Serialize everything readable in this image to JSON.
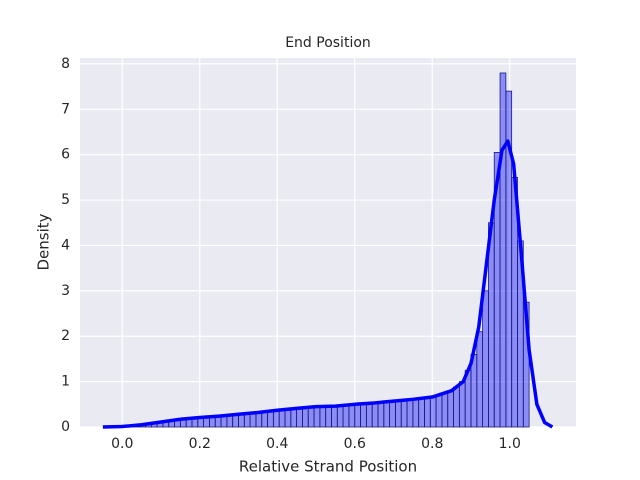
{
  "chart_data": {
    "type": "histogram",
    "title": "End Position",
    "xlabel": "Relative Strand Position",
    "ylabel": "Density",
    "bins": [
      0,
      0.015,
      0.03,
      0.045,
      0.06,
      0.075,
      0.09,
      0.105,
      0.12,
      0.135,
      0.15,
      0.165,
      0.18,
      0.195,
      0.21,
      0.225,
      0.24,
      0.255,
      0.27,
      0.285,
      0.3,
      0.315,
      0.33,
      0.345,
      0.36,
      0.375,
      0.39,
      0.405,
      0.42,
      0.435,
      0.45,
      0.465,
      0.48,
      0.495,
      0.51,
      0.525,
      0.54,
      0.555,
      0.57,
      0.585,
      0.6,
      0.615,
      0.63,
      0.645,
      0.66,
      0.675,
      0.69,
      0.705,
      0.72,
      0.735,
      0.75,
      0.765,
      0.78,
      0.795,
      0.81,
      0.825,
      0.84,
      0.855,
      0.87,
      0.885,
      0.9,
      0.915,
      0.93,
      0.945,
      0.96,
      0.975,
      0.99,
      1.005,
      1.02,
      1.035,
      1.05
    ],
    "counts": [
      0.02,
      0.03,
      0.04,
      0.05,
      0.07,
      0.09,
      0.11,
      0.13,
      0.15,
      0.16,
      0.18,
      0.19,
      0.2,
      0.21,
      0.22,
      0.23,
      0.25,
      0.26,
      0.28,
      0.29,
      0.3,
      0.31,
      0.32,
      0.33,
      0.35,
      0.37,
      0.38,
      0.38,
      0.39,
      0.4,
      0.42,
      0.44,
      0.45,
      0.45,
      0.46,
      0.46,
      0.47,
      0.48,
      0.5,
      0.51,
      0.52,
      0.53,
      0.54,
      0.55,
      0.56,
      0.57,
      0.58,
      0.59,
      0.6,
      0.61,
      0.62,
      0.64,
      0.66,
      0.68,
      0.71,
      0.75,
      0.8,
      0.88,
      1.0,
      1.25,
      1.6,
      2.1,
      3.0,
      4.5,
      6.05,
      7.8,
      7.4,
      5.5,
      4.1,
      2.75
    ],
    "color": "#0000ff",
    "edgecolor": "#1a1a80",
    "line": {
      "x": [
        -0.05,
        0,
        0.05,
        0.1,
        0.15,
        0.2,
        0.25,
        0.3,
        0.35,
        0.4,
        0.45,
        0.5,
        0.55,
        0.6,
        0.65,
        0.7,
        0.75,
        0.8,
        0.85,
        0.88,
        0.9,
        0.92,
        0.94,
        0.96,
        0.98,
        0.995,
        1.01,
        1.03,
        1.05,
        1.07,
        1.09,
        1.11
      ],
      "values": [
        0,
        0.01,
        0.05,
        0.11,
        0.17,
        0.21,
        0.24,
        0.28,
        0.32,
        0.37,
        0.41,
        0.45,
        0.46,
        0.5,
        0.53,
        0.57,
        0.61,
        0.66,
        0.8,
        1.0,
        1.4,
        2.2,
        3.6,
        5.0,
        6.1,
        6.3,
        5.8,
        3.8,
        1.7,
        0.5,
        0.1,
        0
      ],
      "color": "#0000ff"
    },
    "xlim": [
      -0.109,
      1.171
    ],
    "ylim": [
      0,
      8.13
    ],
    "xticks": [
      {
        "value": 0,
        "label": "0.0"
      },
      0.2,
      0.4,
      0.6,
      0.8,
      {
        "value": 1,
        "label": "1.0"
      }
    ],
    "yticks": [
      0,
      1,
      2,
      3,
      4,
      5,
      6,
      7,
      8
    ],
    "grid": true
  }
}
